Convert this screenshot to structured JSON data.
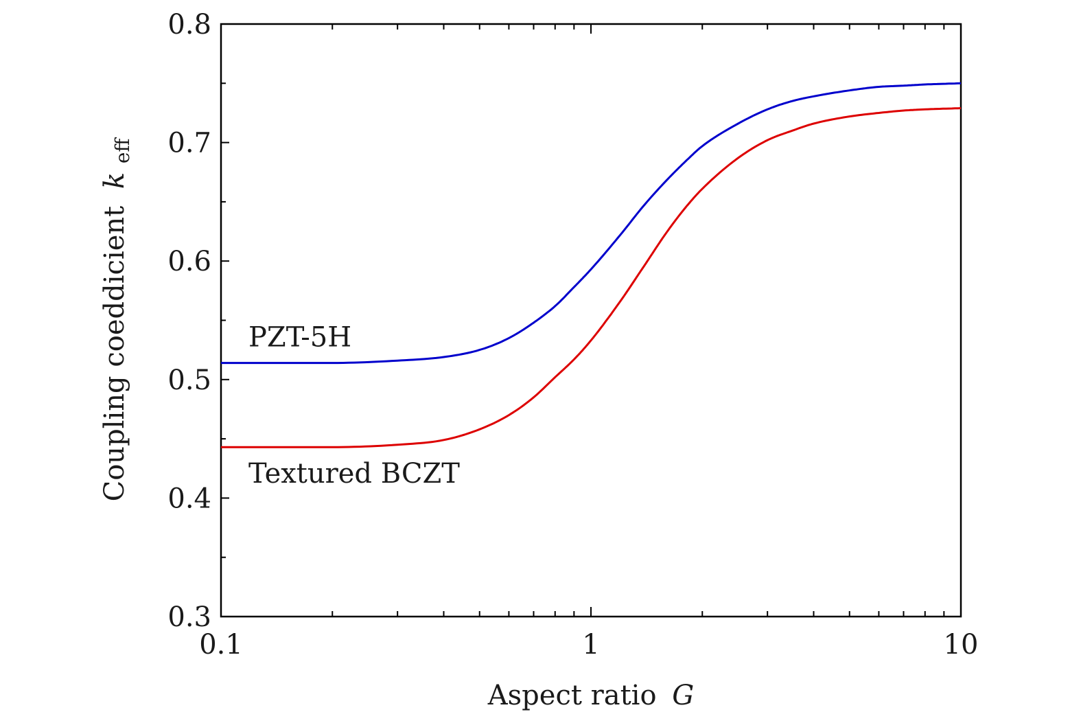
{
  "chart_data": {
    "type": "line",
    "xlabel": "Aspect ratio",
    "xlabel_var": "G",
    "ylabel": "Coupling coeddicient",
    "ylabel_var": "k",
    "ylabel_sub": "eff",
    "xscale": "log",
    "xlim": [
      0.1,
      10
    ],
    "ylim": [
      0.3,
      0.8
    ],
    "grid": false,
    "legend": "none",
    "x_ticks": [
      0.1,
      1,
      10
    ],
    "x_tick_labels": [
      "0.1",
      "1",
      "10"
    ],
    "y_ticks": [
      0.3,
      0.4,
      0.5,
      0.6,
      0.7,
      0.8
    ],
    "y_tick_labels": [
      "0.3",
      "0.4",
      "0.5",
      "0.6",
      "0.7",
      "0.8"
    ],
    "x": [
      0.1,
      0.2,
      0.3,
      0.4,
      0.5,
      0.6,
      0.7,
      0.8,
      0.9,
      1.0,
      1.2,
      1.4,
      1.6,
      1.8,
      2.0,
      2.5,
      3.0,
      3.5,
      4.0,
      5.0,
      6.0,
      7.0,
      8.0,
      10.0
    ],
    "series": [
      {
        "name": "PZT-5H",
        "color": "#0000cc",
        "values": [
          0.514,
          0.514,
          0.516,
          0.519,
          0.525,
          0.535,
          0.548,
          0.562,
          0.578,
          0.593,
          0.622,
          0.648,
          0.668,
          0.684,
          0.697,
          0.716,
          0.728,
          0.735,
          0.739,
          0.744,
          0.747,
          0.748,
          0.749,
          0.75
        ]
      },
      {
        "name": "Textured BCZT",
        "color": "#dd0000",
        "values": [
          0.443,
          0.443,
          0.445,
          0.449,
          0.458,
          0.47,
          0.485,
          0.502,
          0.517,
          0.533,
          0.566,
          0.597,
          0.624,
          0.645,
          0.661,
          0.687,
          0.702,
          0.71,
          0.716,
          0.722,
          0.725,
          0.727,
          0.728,
          0.729
        ]
      }
    ]
  }
}
